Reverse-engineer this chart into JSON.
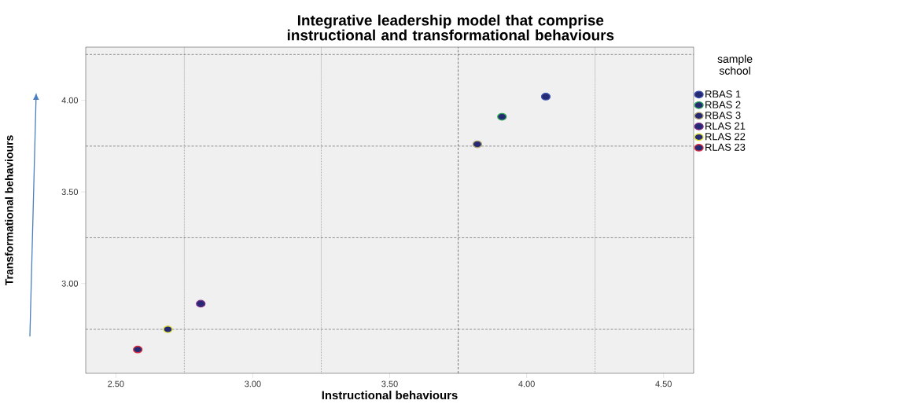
{
  "chart_data": {
    "type": "scatter",
    "title": "Integrative leadership model that comprise instructional and transformational behaviours",
    "xlabel": "Instructional behaviours",
    "ylabel": "Transformational behaviours",
    "legend_title": "sample school",
    "xlim": [
      2.39,
      4.61
    ],
    "ylim": [
      2.51,
      4.29
    ],
    "xticks": [
      {
        "value": 2.5,
        "label": "2.50"
      },
      {
        "value": 3.0,
        "label": "3.00"
      },
      {
        "value": 3.5,
        "label": "3.50"
      },
      {
        "value": 4.0,
        "label": "4.00"
      },
      {
        "value": 4.5,
        "label": "4.50"
      }
    ],
    "yticks": [
      {
        "value": 3.0,
        "label": "3.00"
      },
      {
        "value": 3.5,
        "label": "3.50"
      },
      {
        "value": 4.0,
        "label": "4.00"
      }
    ],
    "grid": false,
    "legend": "right",
    "ref_lines": [
      {
        "axis": "x",
        "value": 2.75,
        "color": "#888888",
        "line_style": "dotted"
      },
      {
        "axis": "x",
        "value": 3.25,
        "color": "#888888",
        "line_style": "dotted"
      },
      {
        "axis": "x",
        "value": 3.75,
        "color": "#444444",
        "line_style": "dashed"
      },
      {
        "axis": "x",
        "value": 4.25,
        "color": "#888888",
        "line_style": "dotted"
      },
      {
        "axis": "y",
        "value": 2.75,
        "color": "#666666",
        "line_style": "dashed"
      },
      {
        "axis": "y",
        "value": 3.25,
        "color": "#666666",
        "line_style": "dashed"
      },
      {
        "axis": "y",
        "value": 3.75,
        "color": "#666666",
        "line_style": "dashed"
      },
      {
        "axis": "y",
        "value": 4.25,
        "color": "#666666",
        "line_style": "dashed"
      }
    ],
    "series": [
      {
        "name": "RBAS 1",
        "color": "#3a4fb0",
        "x": [
          4.07
        ],
        "values": [
          4.02
        ]
      },
      {
        "name": "RBAS 2",
        "color": "#2ca05a",
        "x": [
          3.91
        ],
        "values": [
          3.91
        ]
      },
      {
        "name": "RBAS 3",
        "color": "#b0a070",
        "x": [
          3.82
        ],
        "values": [
          3.76
        ]
      },
      {
        "name": "RLAS 21",
        "color": "#7a2a8a",
        "x": [
          2.81
        ],
        "values": [
          2.89
        ]
      },
      {
        "name": "RLAS 22",
        "color": "#e0e040",
        "x": [
          2.69
        ],
        "values": [
          2.75
        ]
      },
      {
        "name": "RLAS 23",
        "color": "#e03040",
        "x": [
          2.58
        ],
        "values": [
          2.64
        ]
      }
    ]
  }
}
